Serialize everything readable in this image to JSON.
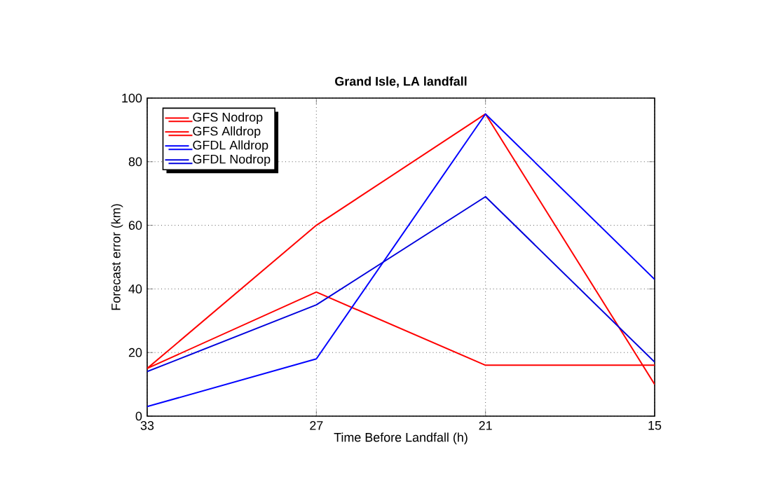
{
  "chart_data": {
    "type": "line",
    "title": "Grand Isle, LA landfall",
    "xlabel": "Time Before Landfall (h)",
    "ylabel": "Forecast error (km)",
    "x": [
      33,
      27,
      21,
      15
    ],
    "xlim": [
      33,
      15
    ],
    "xticks": [
      33,
      27,
      21,
      15
    ],
    "ylim": [
      0,
      100
    ],
    "yticks": [
      0,
      20,
      40,
      60,
      80,
      100
    ],
    "grid": true,
    "legend": "top left",
    "marker": "none",
    "line_style": "solid",
    "series": [
      {
        "name": "GFS Nodrop",
        "color": "#ff0000",
        "values": [
          15,
          39,
          16,
          16
        ]
      },
      {
        "name": "GFS Alldrop",
        "color": "#ff0000",
        "values": [
          15,
          60,
          95,
          10
        ]
      },
      {
        "name": "GFDL Alldrop",
        "color": "#0000ff",
        "values": [
          3,
          18,
          95,
          43
        ]
      },
      {
        "name": "GFDL Nodrop",
        "color": "#0000dd",
        "values": [
          14,
          35,
          69,
          17
        ]
      }
    ]
  }
}
